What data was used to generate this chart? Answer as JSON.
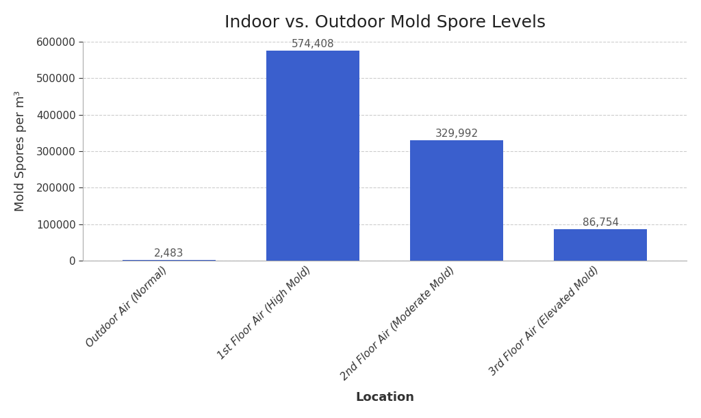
{
  "title": "Indoor vs. Outdoor Mold Spore Levels",
  "xlabel": "Location",
  "ylabel": "Mold Spores per m³",
  "categories": [
    "Outdoor Air (Normal)",
    "1st Floor Air (High Mold)",
    "2nd Floor Air (Moderate Mold)",
    "3rd Floor Air (Elevated Mold)"
  ],
  "values": [
    2483,
    574408,
    329992,
    86754
  ],
  "bar_color": "#3a5fcd",
  "label_color": "#555555",
  "background_color": "#ffffff",
  "plot_background": "#ffffff",
  "ylim": [
    0,
    600000
  ],
  "yticks": [
    0,
    100000,
    200000,
    300000,
    400000,
    500000,
    600000
  ],
  "title_fontsize": 18,
  "axis_label_fontsize": 13,
  "tick_fontsize": 11,
  "bar_label_fontsize": 11,
  "grid_color": "#cccccc",
  "spine_color": "#aaaaaa",
  "bar_width": 0.65
}
